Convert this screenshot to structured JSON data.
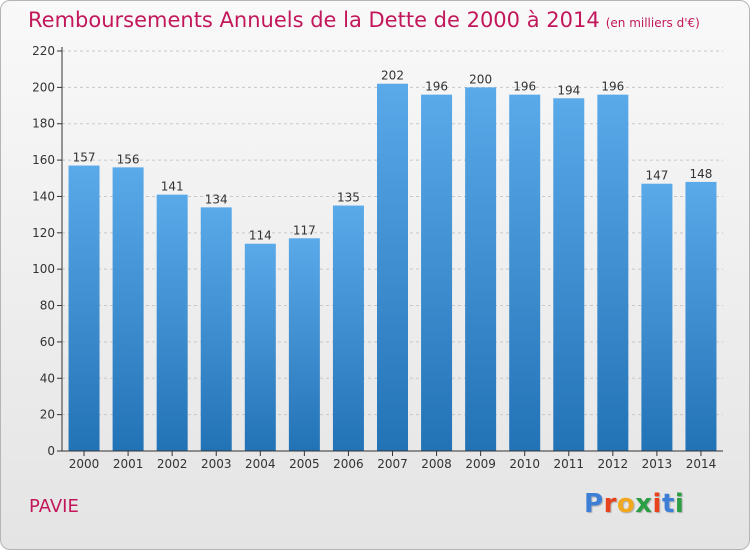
{
  "header": {
    "title": "Remboursements Annuels de la Dette de 2000 à 2014",
    "unit": "(en milliers d'€)"
  },
  "footer": {
    "city": "PAVIE",
    "logo_letters": [
      "P",
      "r",
      "o",
      "x",
      "i",
      "t",
      "i"
    ],
    "logo_colors": [
      "#3d7fd6",
      "#e8421d",
      "#f1a81c",
      "#2c9e43",
      "#e8421d",
      "#3d7fd6",
      "#2c9e43"
    ]
  },
  "colors": {
    "title": "#c2185b",
    "bar_top": "#5aaaea",
    "bar_bottom": "#2272b6",
    "grid": "#c8c8c8",
    "axis": "#333333"
  },
  "chart_data": {
    "type": "bar",
    "title": "Remboursements Annuels de la Dette de 2000 à 2014",
    "subtitle": "(en milliers d'€)",
    "xlabel": "",
    "ylabel": "",
    "categories": [
      "2000",
      "2001",
      "2002",
      "2003",
      "2004",
      "2005",
      "2006",
      "2007",
      "2008",
      "2009",
      "2010",
      "2011",
      "2012",
      "2013",
      "2014"
    ],
    "values": [
      157,
      156,
      141,
      134,
      114,
      117,
      135,
      202,
      196,
      200,
      196,
      194,
      196,
      147,
      148
    ],
    "ylim": [
      0,
      220
    ],
    "yticks": [
      0,
      20,
      40,
      60,
      80,
      100,
      120,
      140,
      160,
      180,
      200,
      220
    ],
    "grid": true,
    "legend": "none"
  }
}
